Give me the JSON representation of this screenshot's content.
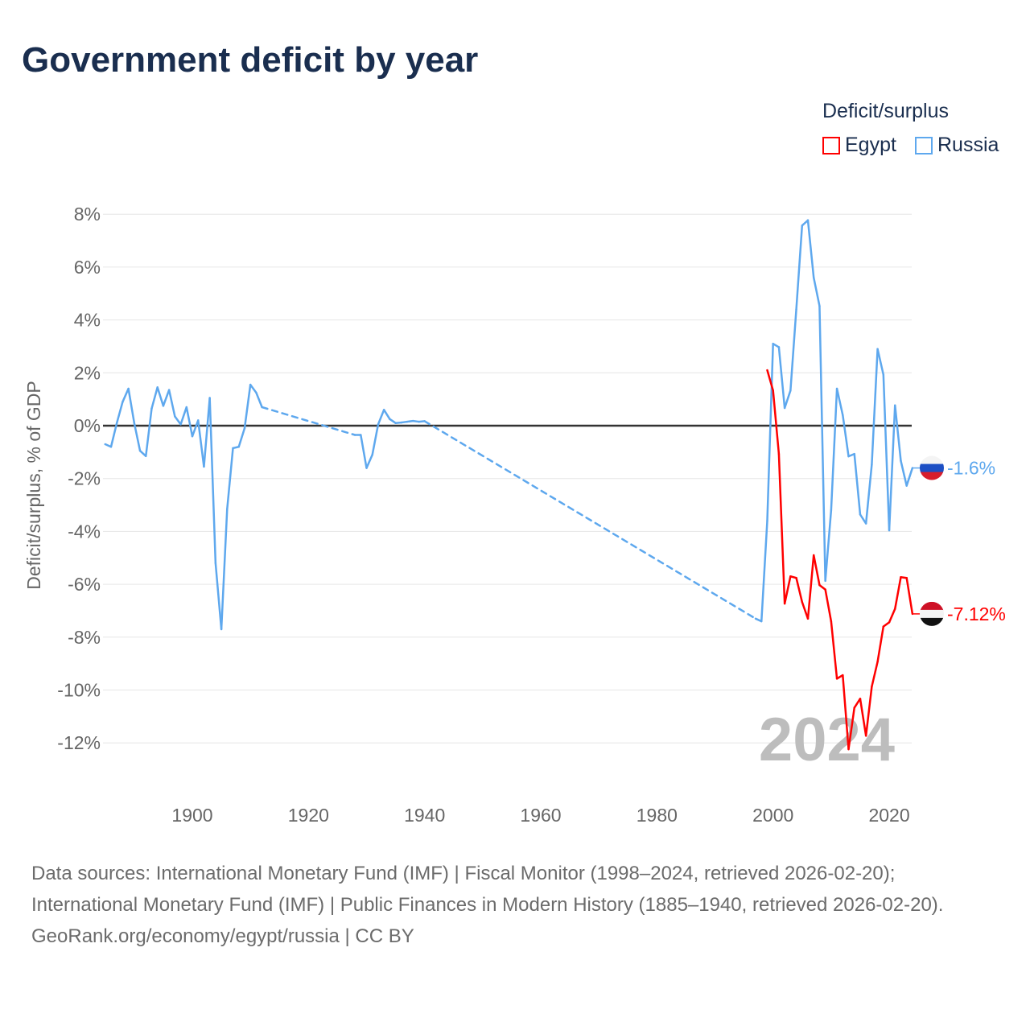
{
  "title": "Government deficit by year",
  "legend": {
    "title": "Deficit/surplus",
    "items": [
      {
        "name": "Egypt",
        "color": "#ff0000"
      },
      {
        "name": "Russia",
        "color": "#5ea8ee"
      }
    ]
  },
  "footer": {
    "line1": "Data sources: International Monetary Fund (IMF) | Fiscal Monitor (1998–2024, retrieved 2026-02-20); International Monetary Fund (IMF) | Public Finances in Modern History (1885–1940, retrieved 2026-02-20).",
    "line2": "GeoRank.org/economy/egypt/russia | CC BY"
  },
  "chart_data": {
    "type": "line",
    "title": "Government deficit by year",
    "ylabel": "Deficit/surplus, % of GDP",
    "xlabel": "",
    "ylim": [
      -13.5,
      8.5
    ],
    "xlim": [
      1884.5,
      2024.5
    ],
    "yticks": [
      8,
      6,
      4,
      2,
      0,
      -2,
      -4,
      -6,
      -8,
      -10,
      -12
    ],
    "ytick_labels": [
      "8%",
      "6%",
      "4%",
      "2%",
      "0%",
      "-2%",
      "-4%",
      "-6%",
      "-8%",
      "-10%",
      "-12%"
    ],
    "xticks": [
      1900,
      1920,
      1940,
      1960,
      1980,
      2000,
      2020
    ],
    "xtick_labels": [
      "1900",
      "1920",
      "1940",
      "1960",
      "1980",
      "2000",
      "2020"
    ],
    "watermark_year": "2024",
    "series": [
      {
        "name": "Russia",
        "color": "#5ea8ee",
        "end_label": "-1.6%",
        "points": [
          [
            1885,
            -0.7
          ],
          [
            1886,
            -0.8
          ],
          [
            1887,
            0.1
          ],
          [
            1888,
            0.9
          ],
          [
            1889,
            1.4
          ],
          [
            1890,
            0.1
          ],
          [
            1891,
            -0.95
          ],
          [
            1892,
            -1.15
          ],
          [
            1893,
            0.65
          ],
          [
            1894,
            1.45
          ],
          [
            1895,
            0.75
          ],
          [
            1896,
            1.35
          ],
          [
            1897,
            0.35
          ],
          [
            1898,
            0.05
          ],
          [
            1899,
            0.7
          ],
          [
            1900,
            -0.4
          ],
          [
            1901,
            0.2
          ],
          [
            1902,
            -1.55
          ],
          [
            1903,
            1.05
          ],
          [
            1904,
            -5.2
          ],
          [
            1905,
            -7.7
          ],
          [
            1906,
            -3.15
          ],
          [
            1907,
            -0.85
          ],
          [
            1908,
            -0.8
          ],
          [
            1909,
            -0.1
          ],
          [
            1910,
            1.55
          ],
          [
            1911,
            1.25
          ],
          [
            1912,
            0.7
          ],
          [
            1928,
            -0.35
          ],
          [
            1929,
            -0.35
          ],
          [
            1930,
            -1.6
          ],
          [
            1931,
            -1.1
          ],
          [
            1932,
            0.05
          ],
          [
            1933,
            0.6
          ],
          [
            1934,
            0.25
          ],
          [
            1935,
            0.1
          ],
          [
            1936,
            0.12
          ],
          [
            1937,
            0.15
          ],
          [
            1938,
            0.18
          ],
          [
            1939,
            0.15
          ],
          [
            1940,
            0.17
          ],
          [
            1997,
            -7.3
          ],
          [
            1998,
            -7.4
          ],
          [
            1999,
            -3.6
          ],
          [
            2000,
            3.1
          ],
          [
            2001,
            2.97
          ],
          [
            2002,
            0.67
          ],
          [
            2003,
            1.33
          ],
          [
            2004,
            4.4
          ],
          [
            2005,
            7.57
          ],
          [
            2006,
            7.77
          ],
          [
            2007,
            5.6
          ],
          [
            2008,
            4.53
          ],
          [
            2009,
            -5.87
          ],
          [
            2010,
            -3.2
          ],
          [
            2011,
            1.4
          ],
          [
            2012,
            0.4
          ],
          [
            2013,
            -1.16
          ],
          [
            2014,
            -1.07
          ],
          [
            2015,
            -3.36
          ],
          [
            2016,
            -3.7
          ],
          [
            2017,
            -1.47
          ],
          [
            2018,
            2.9
          ],
          [
            2019,
            1.93
          ],
          [
            2020,
            -3.96
          ],
          [
            2021,
            0.77
          ],
          [
            2022,
            -1.33
          ],
          [
            2023,
            -2.27
          ],
          [
            2024,
            -1.6
          ]
        ]
      },
      {
        "name": "Egypt",
        "color": "#ff0000",
        "end_label": "-7.12%",
        "points": [
          [
            1999,
            2.1
          ],
          [
            2000,
            1.33
          ],
          [
            2001,
            -1.07
          ],
          [
            2002,
            -6.73
          ],
          [
            2003,
            -5.7
          ],
          [
            2004,
            -5.76
          ],
          [
            2005,
            -6.67
          ],
          [
            2006,
            -7.3
          ],
          [
            2007,
            -4.9
          ],
          [
            2008,
            -6.03
          ],
          [
            2009,
            -6.2
          ],
          [
            2010,
            -7.4
          ],
          [
            2011,
            -9.57
          ],
          [
            2012,
            -9.44
          ],
          [
            2013,
            -12.24
          ],
          [
            2014,
            -10.67
          ],
          [
            2015,
            -10.33
          ],
          [
            2016,
            -11.73
          ],
          [
            2017,
            -9.87
          ],
          [
            2018,
            -8.93
          ],
          [
            2019,
            -7.6
          ],
          [
            2020,
            -7.44
          ],
          [
            2021,
            -6.93
          ],
          [
            2022,
            -5.73
          ],
          [
            2023,
            -5.76
          ],
          [
            2024,
            -7.12
          ]
        ]
      }
    ]
  }
}
